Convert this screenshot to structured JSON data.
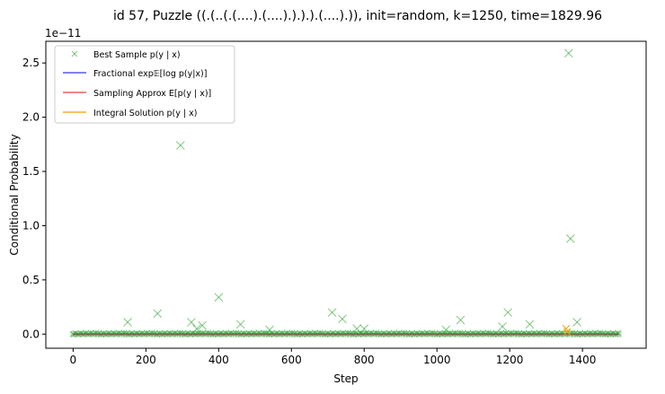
{
  "chart_data": {
    "type": "scatter",
    "title": "id 57, Puzzle ((.(..(.(....).(....).).).).(....).)), init=random, k=1250, time=1829.96",
    "xlabel": "Step",
    "ylabel": "Conditional Probability",
    "y_offset_text": "1e−11",
    "xlim": [
      -75,
      1575
    ],
    "ylim": [
      -0.13,
      2.7
    ],
    "x_ticks": [
      0,
      200,
      400,
      600,
      800,
      1000,
      1200,
      1400
    ],
    "y_ticks": [
      0.0,
      0.5,
      1.0,
      1.5,
      2.0,
      2.5
    ],
    "x_tick_labels": [
      "0",
      "200",
      "400",
      "600",
      "800",
      "1000",
      "1200",
      "1400"
    ],
    "y_tick_labels": [
      "0.0",
      "0.5",
      "1.0",
      "1.5",
      "2.0",
      "2.5"
    ],
    "grid": false,
    "legend_position": "top-left",
    "legend": [
      {
        "label": "Best Sample p(y | x)",
        "color": "#2ca02c",
        "marker": "x"
      },
      {
        "label": "Fractional exp𝔼[log p(y|x)]",
        "color": "#3b3bdc",
        "marker": "line"
      },
      {
        "label": "Sampling Approx E[p(y | x)]",
        "color": "#e8453c",
        "marker": "line"
      },
      {
        "label": "Integral Solution p(y | x)",
        "color": "#f0a818",
        "marker": "line"
      }
    ],
    "series": [
      {
        "name": "Best Sample p(y | x)",
        "color": "#2ca02c",
        "points": [
          [
            150,
            0.11
          ],
          [
            232,
            0.19
          ],
          [
            295,
            1.74
          ],
          [
            325,
            0.11
          ],
          [
            340,
            0.05
          ],
          [
            355,
            0.08
          ],
          [
            400,
            0.34
          ],
          [
            460,
            0.09
          ],
          [
            540,
            0.04
          ],
          [
            712,
            0.2
          ],
          [
            740,
            0.14
          ],
          [
            780,
            0.05
          ],
          [
            800,
            0.05
          ],
          [
            1025,
            0.04
          ],
          [
            1065,
            0.13
          ],
          [
            1180,
            0.07
          ],
          [
            1195,
            0.2
          ],
          [
            1255,
            0.09
          ],
          [
            1362,
            2.59
          ],
          [
            1367,
            0.88
          ],
          [
            1385,
            0.11
          ]
        ]
      },
      {
        "name": "Fractional exp𝔼[log p(y|x)]",
        "color": "#3b3bdc",
        "x": [
          0,
          1500
        ],
        "y": [
          0.0,
          0.0
        ]
      },
      {
        "name": "Sampling Approx E[p(y | x)]",
        "color": "#e8453c",
        "x": [
          0,
          1500
        ],
        "y": [
          0.0,
          0.0
        ]
      },
      {
        "name": "Integral Solution p(y | x)",
        "color": "#f0a818",
        "points": [
          [
            1355,
            0.05
          ],
          [
            1358,
            0.02
          ]
        ]
      }
    ]
  }
}
